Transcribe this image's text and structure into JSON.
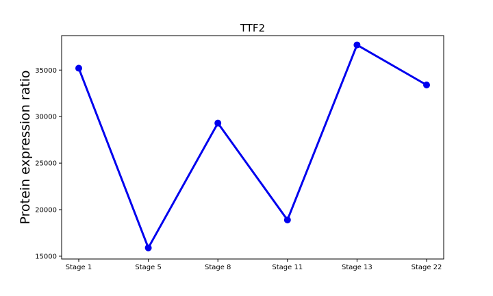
{
  "chart_data": {
    "type": "line",
    "title": "TTF2",
    "xlabel": "",
    "ylabel": "Protein expression ratio",
    "categories": [
      "Stage 1",
      "Stage 5",
      "Stage 8",
      "Stage 11",
      "Stage 13",
      "Stage 22"
    ],
    "series": [
      {
        "values": [
          35200,
          15900,
          29300,
          18900,
          37700,
          33400
        ],
        "color": "#0000ee",
        "marker": "circle"
      }
    ],
    "yticks": [
      15000,
      20000,
      25000,
      30000,
      35000
    ],
    "ylim": [
      14700,
      38700
    ],
    "grid": false,
    "legend": "none"
  }
}
